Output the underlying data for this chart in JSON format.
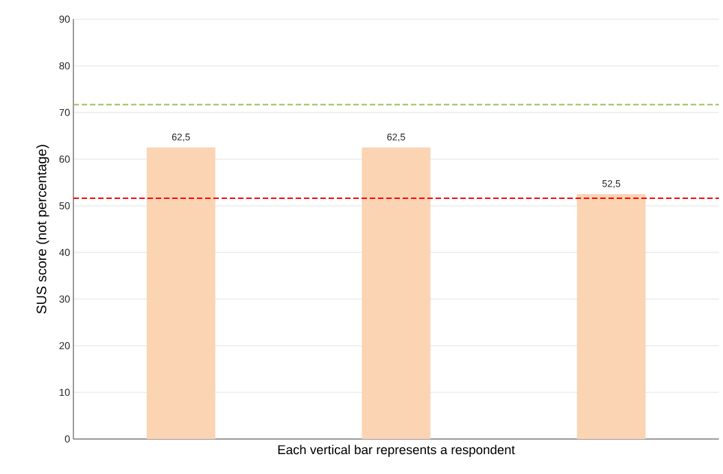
{
  "chart_data": {
    "type": "bar",
    "xlabel": "Each vertical bar represents a respondent",
    "ylabel": "SUS score (not percentage)",
    "categories": [
      null,
      null,
      null
    ],
    "values": [
      62.5,
      62.5,
      52.5
    ],
    "value_labels": [
      "62,5",
      "62,5",
      "52,5"
    ],
    "color": "#fbd4b4",
    "ylim": [
      0,
      90
    ],
    "yticks": [
      0,
      10,
      20,
      30,
      40,
      50,
      60,
      70,
      80,
      90
    ],
    "grid": "y",
    "ref_lines": [
      {
        "axis": "y",
        "value": 71.7,
        "color": "#9bbb59",
        "line_style": "dashed"
      },
      {
        "axis": "y",
        "value": 51.6,
        "color": "#ff0000",
        "line_style": "dashed"
      }
    ]
  }
}
